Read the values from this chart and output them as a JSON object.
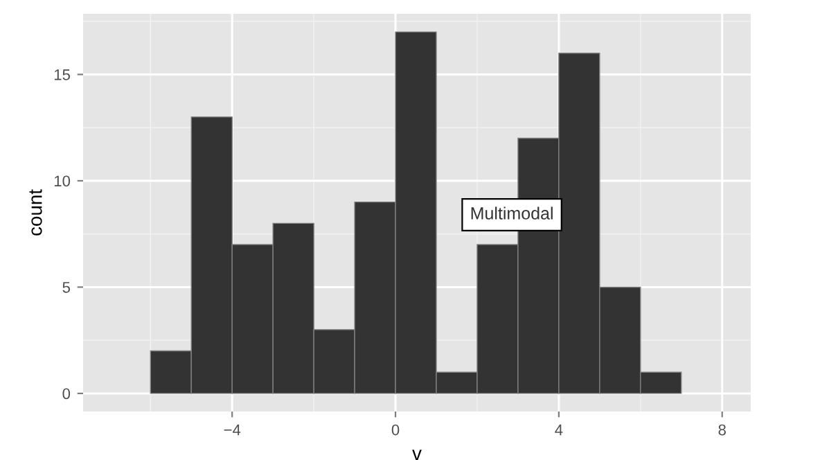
{
  "chart_data": {
    "type": "histogram",
    "xlabel": "v",
    "ylabel": "count",
    "bins": [
      -6,
      -5,
      -4,
      -3,
      -2,
      -1,
      0,
      1,
      2,
      3,
      4,
      5,
      6,
      7
    ],
    "values": [
      2,
      13,
      7,
      8,
      3,
      9,
      17,
      1,
      7,
      12,
      16,
      5,
      1
    ],
    "color": "#333333",
    "xlim": [
      -7.65,
      8.7
    ],
    "xticks": [
      {
        "value": -4,
        "label": "−4"
      },
      0,
      4,
      8
    ],
    "ylim": [
      -0.85,
      17.85
    ],
    "yticks": [
      0,
      5,
      10,
      15
    ],
    "grid": true,
    "legend": false,
    "annotations": [
      {
        "text": "Multimodal",
        "x": 2.85,
        "y": 8.4
      }
    ]
  }
}
